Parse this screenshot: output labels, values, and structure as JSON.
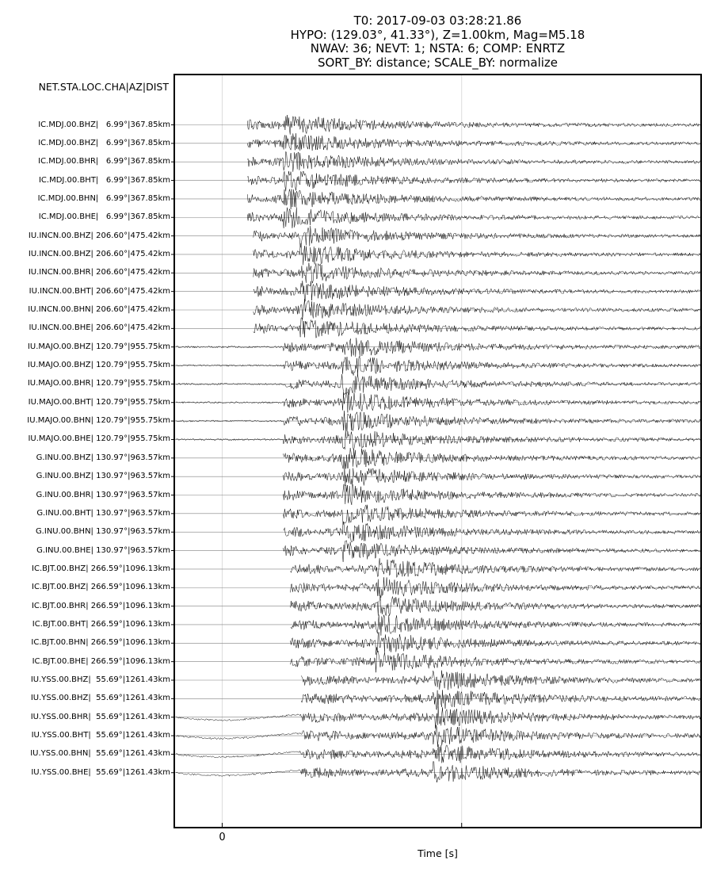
{
  "title": {
    "lines": [
      "T0: 2017-09-03 03:28:21.86",
      "HYPO: (129.03°, 41.33°), Z=1.00km, Mag=M5.18",
      "NWAV: 36; NEVT: 1; NSTA: 6; COMP: ENRTZ",
      "SORT_BY: distance; SCALE_BY: normalize"
    ]
  },
  "header_label": "NET.STA.LOC.CHA|AZ|DIST",
  "chart_data": {
    "type": "line",
    "title": "T0: 2017-09-03 03:28:21.86 | HYPO: (129.03°, 41.33°), Z=1.00km, Mag=M5.18 | NWAV: 36; NEVT: 1; NSTA: 6; COMP: ENRTZ | SORT_BY: distance; SCALE_BY: normalize",
    "xlabel": "Time [s]",
    "ylabel": "",
    "x_ticks": [
      {
        "value": 0,
        "label": "0"
      },
      {
        "value": 1,
        "label": ""
      }
    ],
    "xlim": [
      -0.2,
      2.0
    ],
    "grid": true,
    "legend": "none",
    "trace_color": "#000000",
    "grid_color": "#dddddd",
    "baseline_color": "#808080",
    "series": [
      {
        "name": "IC.MDJ.00.BHZ|   6.99°|367.85km",
        "onset_s": 0.105,
        "s_arrival_s": 0.255,
        "end_s": 2.0,
        "long_period": false
      },
      {
        "name": "IC.MDJ.00.BHZ|   6.99°|367.85km",
        "onset_s": 0.105,
        "s_arrival_s": 0.255,
        "end_s": 2.0,
        "long_period": false
      },
      {
        "name": "IC.MDJ.00.BHR|   6.99°|367.85km",
        "onset_s": 0.105,
        "s_arrival_s": 0.255,
        "end_s": 2.0,
        "long_period": false
      },
      {
        "name": "IC.MDJ.00.BHT|   6.99°|367.85km",
        "onset_s": 0.105,
        "s_arrival_s": 0.255,
        "end_s": 2.0,
        "long_period": false
      },
      {
        "name": "IC.MDJ.00.BHN|   6.99°|367.85km",
        "onset_s": 0.105,
        "s_arrival_s": 0.255,
        "end_s": 2.0,
        "long_period": false
      },
      {
        "name": "IC.MDJ.00.BHE|   6.99°|367.85km",
        "onset_s": 0.105,
        "s_arrival_s": 0.255,
        "end_s": 2.0,
        "long_period": false
      },
      {
        "name": "IU.INCN.00.BHZ| 206.60°|475.42km",
        "onset_s": 0.13,
        "s_arrival_s": 0.325,
        "end_s": 2.0,
        "long_period": false
      },
      {
        "name": "IU.INCN.00.BHZ| 206.60°|475.42km",
        "onset_s": 0.13,
        "s_arrival_s": 0.325,
        "end_s": 2.0,
        "long_period": false
      },
      {
        "name": "IU.INCN.00.BHR| 206.60°|475.42km",
        "onset_s": 0.13,
        "s_arrival_s": 0.325,
        "end_s": 2.0,
        "long_period": false
      },
      {
        "name": "IU.INCN.00.BHT| 206.60°|475.42km",
        "onset_s": 0.13,
        "s_arrival_s": 0.325,
        "end_s": 2.0,
        "long_period": false
      },
      {
        "name": "IU.INCN.00.BHN| 206.60°|475.42km",
        "onset_s": 0.13,
        "s_arrival_s": 0.325,
        "end_s": 2.0,
        "long_period": false
      },
      {
        "name": "IU.INCN.00.BHE| 206.60°|475.42km",
        "onset_s": 0.13,
        "s_arrival_s": 0.325,
        "end_s": 2.0,
        "long_period": false
      },
      {
        "name": "IU.MAJO.00.BHZ| 120.79°|955.75km",
        "onset_s": 0.255,
        "s_arrival_s": 0.5,
        "end_s": 2.0,
        "long_period": false
      },
      {
        "name": "IU.MAJO.00.BHZ| 120.79°|955.75km",
        "onset_s": 0.255,
        "s_arrival_s": 0.5,
        "end_s": 2.0,
        "long_period": false
      },
      {
        "name": "IU.MAJO.00.BHR| 120.79°|955.75km",
        "onset_s": 0.255,
        "s_arrival_s": 0.5,
        "end_s": 2.0,
        "long_period": false
      },
      {
        "name": "IU.MAJO.00.BHT| 120.79°|955.75km",
        "onset_s": 0.255,
        "s_arrival_s": 0.5,
        "end_s": 2.0,
        "long_period": false
      },
      {
        "name": "IU.MAJO.00.BHN| 120.79°|955.75km",
        "onset_s": 0.255,
        "s_arrival_s": 0.5,
        "end_s": 2.0,
        "long_period": false
      },
      {
        "name": "IU.MAJO.00.BHE| 120.79°|955.75km",
        "onset_s": 0.255,
        "s_arrival_s": 0.5,
        "end_s": 2.0,
        "long_period": false
      },
      {
        "name": "G.INU.00.BHZ| 130.97°|963.57km",
        "onset_s": 0.255,
        "s_arrival_s": 0.5,
        "end_s": 2.0,
        "long_period": false
      },
      {
        "name": "G.INU.00.BHZ| 130.97°|963.57km",
        "onset_s": 0.255,
        "s_arrival_s": 0.5,
        "end_s": 2.0,
        "long_period": false
      },
      {
        "name": "G.INU.00.BHR| 130.97°|963.57km",
        "onset_s": 0.255,
        "s_arrival_s": 0.5,
        "end_s": 2.0,
        "long_period": false
      },
      {
        "name": "G.INU.00.BHT| 130.97°|963.57km",
        "onset_s": 0.255,
        "s_arrival_s": 0.5,
        "end_s": 2.0,
        "long_period": false
      },
      {
        "name": "G.INU.00.BHN| 130.97°|963.57km",
        "onset_s": 0.255,
        "s_arrival_s": 0.5,
        "end_s": 2.0,
        "long_period": false
      },
      {
        "name": "G.INU.00.BHE| 130.97°|963.57km",
        "onset_s": 0.255,
        "s_arrival_s": 0.5,
        "end_s": 2.0,
        "long_period": false
      },
      {
        "name": "IC.BJT.00.BHZ| 266.59°|1096.13km",
        "onset_s": 0.285,
        "s_arrival_s": 0.64,
        "end_s": 2.0,
        "long_period": false
      },
      {
        "name": "IC.BJT.00.BHZ| 266.59°|1096.13km",
        "onset_s": 0.285,
        "s_arrival_s": 0.64,
        "end_s": 2.0,
        "long_period": false
      },
      {
        "name": "IC.BJT.00.BHR| 266.59°|1096.13km",
        "onset_s": 0.285,
        "s_arrival_s": 0.64,
        "end_s": 2.0,
        "long_period": false
      },
      {
        "name": "IC.BJT.00.BHT| 266.59°|1096.13km",
        "onset_s": 0.285,
        "s_arrival_s": 0.64,
        "end_s": 2.0,
        "long_period": false
      },
      {
        "name": "IC.BJT.00.BHN| 266.59°|1096.13km",
        "onset_s": 0.285,
        "s_arrival_s": 0.64,
        "end_s": 2.0,
        "long_period": false
      },
      {
        "name": "IC.BJT.00.BHE| 266.59°|1096.13km",
        "onset_s": 0.285,
        "s_arrival_s": 0.64,
        "end_s": 2.0,
        "long_period": false
      },
      {
        "name": "IU.YSS.00.BHZ|  55.69°|1261.43km",
        "onset_s": 0.33,
        "s_arrival_s": 0.88,
        "end_s": 2.0,
        "long_period": false
      },
      {
        "name": "IU.YSS.00.BHZ|  55.69°|1261.43km",
        "onset_s": 0.33,
        "s_arrival_s": 0.88,
        "end_s": 2.0,
        "long_period": false
      },
      {
        "name": "IU.YSS.00.BHR|  55.69°|1261.43km",
        "onset_s": 0.33,
        "s_arrival_s": 0.88,
        "end_s": 2.0,
        "long_period": true
      },
      {
        "name": "IU.YSS.00.BHT|  55.69°|1261.43km",
        "onset_s": 0.33,
        "s_arrival_s": 0.88,
        "end_s": 2.0,
        "long_period": true
      },
      {
        "name": "IU.YSS.00.BHN|  55.69°|1261.43km",
        "onset_s": 0.33,
        "s_arrival_s": 0.88,
        "end_s": 2.0,
        "long_period": true
      },
      {
        "name": "IU.YSS.00.BHE|  55.69°|1261.43km",
        "onset_s": 0.33,
        "s_arrival_s": 0.88,
        "end_s": 2.0,
        "long_period": true
      }
    ]
  }
}
